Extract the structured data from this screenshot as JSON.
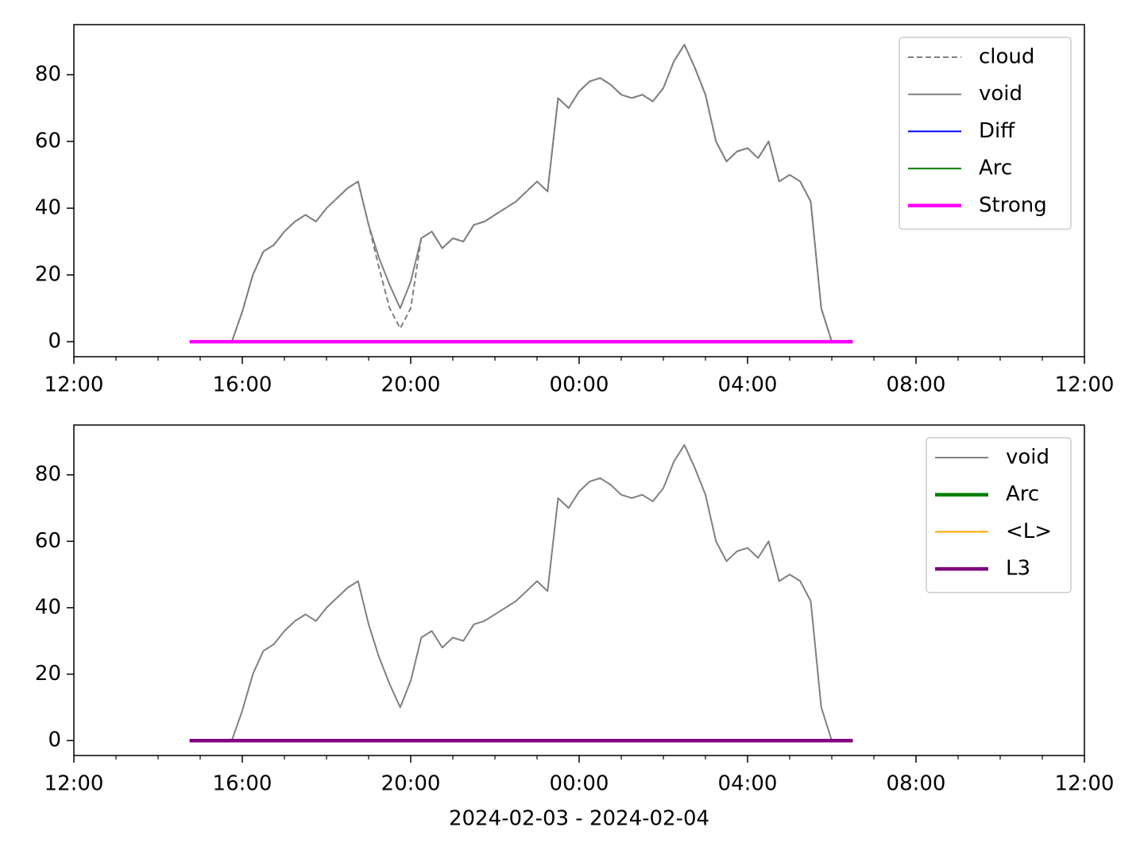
{
  "chart_data": [
    {
      "type": "line",
      "legend": "upper right",
      "xlim": [
        "2024-02-03T12:00",
        "2024-02-04T12:00"
      ],
      "ylim": [
        -4.5,
        95
      ],
      "xticks": [
        {
          "value": "2024-02-03T12:00",
          "label": "12:00"
        },
        {
          "value": "2024-02-03T16:00",
          "label": "16:00"
        },
        {
          "value": "2024-02-03T20:00",
          "label": "20:00"
        },
        {
          "value": "2024-02-04T00:00",
          "label": "00:00"
        },
        {
          "value": "2024-02-04T04:00",
          "label": "04:00"
        },
        {
          "value": "2024-02-04T08:00",
          "label": "08:00"
        },
        {
          "value": "2024-02-04T12:00",
          "label": "12:00"
        }
      ],
      "xminorticks": [
        "2024-02-03T13:00",
        "2024-02-03T14:00",
        "2024-02-03T15:00",
        "2024-02-03T17:00",
        "2024-02-03T18:00",
        "2024-02-03T19:00",
        "2024-02-03T21:00",
        "2024-02-03T22:00",
        "2024-02-03T23:00",
        "2024-02-04T01:00",
        "2024-02-04T02:00",
        "2024-02-04T03:00",
        "2024-02-04T05:00",
        "2024-02-04T06:00",
        "2024-02-04T07:00",
        "2024-02-04T09:00",
        "2024-02-04T10:00",
        "2024-02-04T11:00"
      ],
      "yticks": [
        0,
        20,
        40,
        60,
        80
      ],
      "x": [
        "2024-02-03T14:45",
        "2024-02-03T15:00",
        "2024-02-03T15:15",
        "2024-02-03T15:30",
        "2024-02-03T15:45",
        "2024-02-03T16:00",
        "2024-02-03T16:15",
        "2024-02-03T16:30",
        "2024-02-03T16:45",
        "2024-02-03T17:00",
        "2024-02-03T17:15",
        "2024-02-03T17:30",
        "2024-02-03T17:45",
        "2024-02-03T18:00",
        "2024-02-03T18:15",
        "2024-02-03T18:30",
        "2024-02-03T18:45",
        "2024-02-03T19:00",
        "2024-02-03T19:15",
        "2024-02-03T19:30",
        "2024-02-03T19:45",
        "2024-02-03T20:00",
        "2024-02-03T20:15",
        "2024-02-03T20:30",
        "2024-02-03T20:45",
        "2024-02-03T21:00",
        "2024-02-03T21:15",
        "2024-02-03T21:30",
        "2024-02-03T21:45",
        "2024-02-03T22:00",
        "2024-02-03T22:15",
        "2024-02-03T22:30",
        "2024-02-03T22:45",
        "2024-02-03T23:00",
        "2024-02-03T23:15",
        "2024-02-03T23:30",
        "2024-02-03T23:45",
        "2024-02-04T00:00",
        "2024-02-04T00:15",
        "2024-02-04T00:30",
        "2024-02-04T00:45",
        "2024-02-04T01:00",
        "2024-02-04T01:15",
        "2024-02-04T01:30",
        "2024-02-04T01:45",
        "2024-02-04T02:00",
        "2024-02-04T02:15",
        "2024-02-04T02:30",
        "2024-02-04T02:45",
        "2024-02-04T03:00",
        "2024-02-04T03:15",
        "2024-02-04T03:30",
        "2024-02-04T03:45",
        "2024-02-04T04:00",
        "2024-02-04T04:15",
        "2024-02-04T04:30",
        "2024-02-04T04:45",
        "2024-02-04T05:00",
        "2024-02-04T05:15",
        "2024-02-04T05:30",
        "2024-02-04T05:45",
        "2024-02-04T06:00",
        "2024-02-04T06:15",
        "2024-02-04T06:30"
      ],
      "series": [
        {
          "name": "cloud",
          "color": "#808080",
          "linestyle": "dashed",
          "linewidth": 2,
          "values": [
            0,
            0,
            0,
            0,
            0,
            9,
            20,
            27,
            29,
            33,
            36,
            38,
            36,
            40,
            43,
            46,
            48,
            35,
            22,
            10,
            4,
            10,
            31,
            33,
            28,
            31,
            30,
            35,
            36,
            38,
            40,
            42,
            45,
            48,
            45,
            73,
            70,
            75,
            78,
            79,
            77,
            74,
            73,
            74,
            72,
            76,
            84,
            89,
            82,
            74,
            60,
            54,
            57,
            58,
            55,
            60,
            48,
            50,
            48,
            42,
            10,
            0,
            0,
            0
          ]
        },
        {
          "name": "void",
          "color": "#808080",
          "linestyle": "solid",
          "linewidth": 2,
          "values": [
            0,
            0,
            0,
            0,
            0,
            9,
            20,
            27,
            29,
            33,
            36,
            38,
            36,
            40,
            43,
            46,
            48,
            35,
            25,
            17,
            10,
            18,
            31,
            33,
            28,
            31,
            30,
            35,
            36,
            38,
            40,
            42,
            45,
            48,
            45,
            73,
            70,
            75,
            78,
            79,
            77,
            74,
            73,
            74,
            72,
            76,
            84,
            89,
            82,
            74,
            60,
            54,
            57,
            58,
            55,
            60,
            48,
            50,
            48,
            42,
            10,
            0,
            0,
            0
          ]
        },
        {
          "name": "Diff",
          "color": "#0000ff",
          "linestyle": "solid",
          "linewidth": 2,
          "values": [
            0,
            0,
            0,
            0,
            0,
            0,
            0,
            0,
            0,
            0,
            0,
            0,
            0,
            0,
            0,
            0,
            0,
            0,
            0,
            0,
            0,
            0,
            0,
            0,
            0,
            0,
            0,
            0,
            0,
            0,
            0,
            0,
            0,
            0,
            0,
            0,
            0,
            0,
            0,
            0,
            0,
            0,
            0,
            0,
            0,
            0,
            0,
            0,
            0,
            0,
            0,
            0,
            0,
            0,
            0,
            0,
            0,
            0,
            0,
            0,
            0,
            0,
            0,
            0
          ]
        },
        {
          "name": "Arc",
          "color": "#008000",
          "linestyle": "solid",
          "linewidth": 2,
          "values": [
            0,
            0,
            0,
            0,
            0,
            0,
            0,
            0,
            0,
            0,
            0,
            0,
            0,
            0,
            0,
            0,
            0,
            0,
            0,
            0,
            0,
            0,
            0,
            0,
            0,
            0,
            0,
            0,
            0,
            0,
            0,
            0,
            0,
            0,
            0,
            0,
            0,
            0,
            0,
            0,
            0,
            0,
            0,
            0,
            0,
            0,
            0,
            0,
            0,
            0,
            0,
            0,
            0,
            0,
            0,
            0,
            0,
            0,
            0,
            0,
            0,
            0,
            0,
            0
          ]
        },
        {
          "name": "Strong",
          "color": "#ff00ff",
          "linestyle": "solid",
          "linewidth": 4.5,
          "values": [
            0,
            0,
            0,
            0,
            0,
            0,
            0,
            0,
            0,
            0,
            0,
            0,
            0,
            0,
            0,
            0,
            0,
            0,
            0,
            0,
            0,
            0,
            0,
            0,
            0,
            0,
            0,
            0,
            0,
            0,
            0,
            0,
            0,
            0,
            0,
            0,
            0,
            0,
            0,
            0,
            0,
            0,
            0,
            0,
            0,
            0,
            0,
            0,
            0,
            0,
            0,
            0,
            0,
            0,
            0,
            0,
            0,
            0,
            0,
            0,
            0,
            0,
            0,
            0
          ]
        }
      ]
    },
    {
      "type": "line",
      "legend": "upper right",
      "xlabel": "2024-02-03 - 2024-02-04",
      "xlim": [
        "2024-02-03T12:00",
        "2024-02-04T12:00"
      ],
      "ylim": [
        -4.5,
        95
      ],
      "xticks": [
        {
          "value": "2024-02-03T12:00",
          "label": "12:00"
        },
        {
          "value": "2024-02-03T16:00",
          "label": "16:00"
        },
        {
          "value": "2024-02-03T20:00",
          "label": "20:00"
        },
        {
          "value": "2024-02-04T00:00",
          "label": "00:00"
        },
        {
          "value": "2024-02-04T04:00",
          "label": "04:00"
        },
        {
          "value": "2024-02-04T08:00",
          "label": "08:00"
        },
        {
          "value": "2024-02-04T12:00",
          "label": "12:00"
        }
      ],
      "xminorticks": [
        "2024-02-03T13:00",
        "2024-02-03T14:00",
        "2024-02-03T15:00",
        "2024-02-03T17:00",
        "2024-02-03T18:00",
        "2024-02-03T19:00",
        "2024-02-03T21:00",
        "2024-02-03T22:00",
        "2024-02-03T23:00",
        "2024-02-04T01:00",
        "2024-02-04T02:00",
        "2024-02-04T03:00",
        "2024-02-04T05:00",
        "2024-02-04T06:00",
        "2024-02-04T07:00",
        "2024-02-04T09:00",
        "2024-02-04T10:00",
        "2024-02-04T11:00"
      ],
      "yticks": [
        0,
        20,
        40,
        60,
        80
      ],
      "x": [
        "2024-02-03T14:45",
        "2024-02-03T15:00",
        "2024-02-03T15:15",
        "2024-02-03T15:30",
        "2024-02-03T15:45",
        "2024-02-03T16:00",
        "2024-02-03T16:15",
        "2024-02-03T16:30",
        "2024-02-03T16:45",
        "2024-02-03T17:00",
        "2024-02-03T17:15",
        "2024-02-03T17:30",
        "2024-02-03T17:45",
        "2024-02-03T18:00",
        "2024-02-03T18:15",
        "2024-02-03T18:30",
        "2024-02-03T18:45",
        "2024-02-03T19:00",
        "2024-02-03T19:15",
        "2024-02-03T19:30",
        "2024-02-03T19:45",
        "2024-02-03T20:00",
        "2024-02-03T20:15",
        "2024-02-03T20:30",
        "2024-02-03T20:45",
        "2024-02-03T21:00",
        "2024-02-03T21:15",
        "2024-02-03T21:30",
        "2024-02-03T21:45",
        "2024-02-03T22:00",
        "2024-02-03T22:15",
        "2024-02-03T22:30",
        "2024-02-03T22:45",
        "2024-02-03T23:00",
        "2024-02-03T23:15",
        "2024-02-03T23:30",
        "2024-02-03T23:45",
        "2024-02-04T00:00",
        "2024-02-04T00:15",
        "2024-02-04T00:30",
        "2024-02-04T00:45",
        "2024-02-04T01:00",
        "2024-02-04T01:15",
        "2024-02-04T01:30",
        "2024-02-04T01:45",
        "2024-02-04T02:00",
        "2024-02-04T02:15",
        "2024-02-04T02:30",
        "2024-02-04T02:45",
        "2024-02-04T03:00",
        "2024-02-04T03:15",
        "2024-02-04T03:30",
        "2024-02-04T03:45",
        "2024-02-04T04:00",
        "2024-02-04T04:15",
        "2024-02-04T04:30",
        "2024-02-04T04:45",
        "2024-02-04T05:00",
        "2024-02-04T05:15",
        "2024-02-04T05:30",
        "2024-02-04T05:45",
        "2024-02-04T06:00",
        "2024-02-04T06:15",
        "2024-02-04T06:30"
      ],
      "series": [
        {
          "name": "void",
          "color": "#808080",
          "linestyle": "solid",
          "linewidth": 2,
          "values": [
            0,
            0,
            0,
            0,
            0,
            9,
            20,
            27,
            29,
            33,
            36,
            38,
            36,
            40,
            43,
            46,
            48,
            35,
            25,
            17,
            10,
            18,
            31,
            33,
            28,
            31,
            30,
            35,
            36,
            38,
            40,
            42,
            45,
            48,
            45,
            73,
            70,
            75,
            78,
            79,
            77,
            74,
            73,
            74,
            72,
            76,
            84,
            89,
            82,
            74,
            60,
            54,
            57,
            58,
            55,
            60,
            48,
            50,
            48,
            42,
            10,
            0,
            0,
            0
          ]
        },
        {
          "name": "Arc",
          "color": "#008000",
          "linestyle": "solid",
          "linewidth": 4.5,
          "values": [
            0,
            0,
            0,
            0,
            0,
            0,
            0,
            0,
            0,
            0,
            0,
            0,
            0,
            0,
            0,
            0,
            0,
            0,
            0,
            0,
            0,
            0,
            0,
            0,
            0,
            0,
            0,
            0,
            0,
            0,
            0,
            0,
            0,
            0,
            0,
            0,
            0,
            0,
            0,
            0,
            0,
            0,
            0,
            0,
            0,
            0,
            0,
            0,
            0,
            0,
            0,
            0,
            0,
            0,
            0,
            0,
            0,
            0,
            0,
            0,
            0,
            0,
            0,
            0
          ]
        },
        {
          "name": "<L>",
          "color": "#ffa500",
          "linestyle": "solid",
          "linewidth": 2,
          "values": [
            0,
            0,
            0,
            0,
            0,
            0,
            0,
            0,
            0,
            0,
            0,
            0,
            0,
            0,
            0,
            0,
            0,
            0,
            0,
            0,
            0,
            0,
            0,
            0,
            0,
            0,
            0,
            0,
            0,
            0,
            0,
            0,
            0,
            0,
            0,
            0,
            0,
            0,
            0,
            0,
            0,
            0,
            0,
            0,
            0,
            0,
            0,
            0,
            0,
            0,
            0,
            0,
            0,
            0,
            0,
            0,
            0,
            0,
            0,
            0,
            0,
            0,
            0,
            0
          ]
        },
        {
          "name": "L3",
          "color": "#800080",
          "linestyle": "solid",
          "linewidth": 4.5,
          "values": [
            0,
            0,
            0,
            0,
            0,
            0,
            0,
            0,
            0,
            0,
            0,
            0,
            0,
            0,
            0,
            0,
            0,
            0,
            0,
            0,
            0,
            0,
            0,
            0,
            0,
            0,
            0,
            0,
            0,
            0,
            0,
            0,
            0,
            0,
            0,
            0,
            0,
            0,
            0,
            0,
            0,
            0,
            0,
            0,
            0,
            0,
            0,
            0,
            0,
            0,
            0,
            0,
            0,
            0,
            0,
            0,
            0,
            0,
            0,
            0,
            0,
            0,
            0,
            0
          ]
        }
      ]
    }
  ]
}
